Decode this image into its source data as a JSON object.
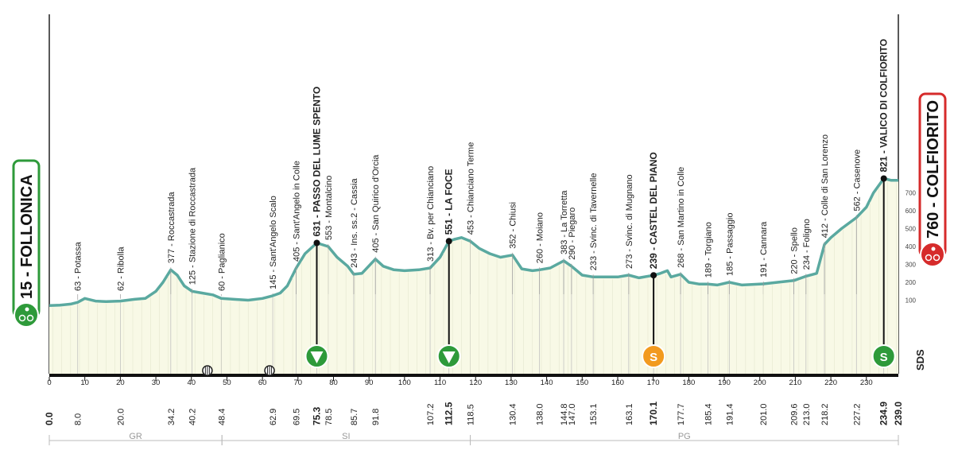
{
  "start": {
    "number": "15",
    "name": "FOLLONICA",
    "color": "#2e9a3a"
  },
  "finish": {
    "number": "760",
    "name": "COLFIORITO",
    "color": "#d62b2b"
  },
  "sds_label": "SDS",
  "regions": [
    "GR",
    "SI",
    "PG"
  ],
  "chart_data": {
    "type": "area",
    "xlabel": "",
    "ylabel": "",
    "xlim": [
      0,
      239
    ],
    "ylim": [
      0,
      800
    ],
    "x_ticks": [
      0,
      10,
      20,
      30,
      40,
      50,
      60,
      70,
      80,
      90,
      100,
      110,
      120,
      130,
      140,
      150,
      160,
      170,
      180,
      190,
      200,
      210,
      220,
      230
    ],
    "y_scale_ticks": [
      100,
      200,
      300,
      400,
      500,
      600,
      700
    ],
    "profile": {
      "x": [
        0,
        3,
        6,
        8,
        10,
        13,
        16,
        20,
        24,
        27,
        30,
        32,
        34.2,
        36,
        38,
        40.2,
        43,
        46,
        48.4,
        52,
        56,
        60,
        62.9,
        65,
        67,
        69.5,
        72,
        75.3,
        78.5,
        81,
        84,
        85.7,
        88,
        91.8,
        94,
        97,
        100,
        104,
        107.2,
        110,
        112.5,
        114,
        116,
        118.5,
        121,
        124,
        127,
        130.4,
        133,
        136,
        138,
        141,
        144.8,
        147,
        150,
        153.1,
        156,
        160,
        163.1,
        166,
        170.1,
        172,
        174,
        175,
        177.7,
        180,
        183,
        185.4,
        188,
        191.4,
        195,
        201,
        205,
        209.6,
        213,
        216,
        218.2,
        220,
        223,
        227.2,
        230,
        232,
        234.9,
        237,
        239
      ],
      "y": [
        70,
        72,
        78,
        88,
        110,
        95,
        92,
        95,
        105,
        110,
        150,
        200,
        270,
        240,
        180,
        150,
        140,
        130,
        110,
        105,
        100,
        110,
        125,
        140,
        180,
        280,
        360,
        420,
        400,
        340,
        290,
        245,
        250,
        330,
        290,
        270,
        265,
        270,
        280,
        340,
        430,
        440,
        450,
        430,
        390,
        360,
        340,
        352,
        275,
        265,
        270,
        280,
        320,
        290,
        240,
        230,
        230,
        230,
        240,
        225,
        239,
        250,
        265,
        230,
        245,
        200,
        190,
        190,
        185,
        200,
        185,
        191,
        200,
        210,
        234,
        250,
        412,
        450,
        500,
        562,
        620,
        700,
        780,
        770,
        770
      ]
    },
    "tick_labels": [
      {
        "km": "0.0",
        "bold": true
      },
      {
        "km": "8.0"
      },
      {
        "km": "20.0"
      },
      {
        "km": "34.2"
      },
      {
        "km": "40.2"
      },
      {
        "km": "48.4"
      },
      {
        "km": "62.9"
      },
      {
        "km": "69.5"
      },
      {
        "km": "75.3",
        "bold": true
      },
      {
        "km": "78.5"
      },
      {
        "km": "85.7"
      },
      {
        "km": "91.8"
      },
      {
        "km": "107.2"
      },
      {
        "km": "112.5",
        "bold": true
      },
      {
        "km": "118.5"
      },
      {
        "km": "130.4"
      },
      {
        "km": "138.0"
      },
      {
        "km": "144.8"
      },
      {
        "km": "147.0"
      },
      {
        "km": "153.1"
      },
      {
        "km": "163.1"
      },
      {
        "km": "170.1",
        "bold": true
      },
      {
        "km": "177.7"
      },
      {
        "km": "185.4"
      },
      {
        "km": "191.4"
      },
      {
        "km": "201.0"
      },
      {
        "km": "209.6"
      },
      {
        "km": "213.0"
      },
      {
        "km": "218.2"
      },
      {
        "km": "227.2"
      },
      {
        "km": "234.9",
        "bold": true
      },
      {
        "km": "239.0",
        "bold": true
      }
    ],
    "places": [
      {
        "km": 8.0,
        "text": "63 - Potassa"
      },
      {
        "km": 20.0,
        "text": "62 - Ribolla"
      },
      {
        "km": 34.2,
        "text": "377 - Roccastrada"
      },
      {
        "km": 40.2,
        "text": "125 - Stazione di Roccastrada"
      },
      {
        "km": 48.4,
        "text": "60 - Paglianico"
      },
      {
        "km": 62.9,
        "text": "145 - Sant'Angelo Scalo"
      },
      {
        "km": 69.5,
        "text": "405 - Sant'Angelo in Colle"
      },
      {
        "km": 75.3,
        "text": "631 - PASSO DEL LUME SPENTO",
        "bold": true
      },
      {
        "km": 78.5,
        "text": "553 - Montalcino"
      },
      {
        "km": 85.7,
        "text": "243 - Ins. ss.2 - Cassia"
      },
      {
        "km": 91.8,
        "text": "405 - San Quirico d'Orcia"
      },
      {
        "km": 107.2,
        "text": "313 - Bv. per Chianciano"
      },
      {
        "km": 112.5,
        "text": "551 - LA FOCE",
        "bold": true
      },
      {
        "km": 118.5,
        "text": "453 - Chianciano Terme"
      },
      {
        "km": 130.4,
        "text": "352 - Chiusi"
      },
      {
        "km": 138.0,
        "text": "260 - Moiano"
      },
      {
        "km": 144.8,
        "text": "383 - La Torretta"
      },
      {
        "km": 147.0,
        "text": "290 - Piegaro"
      },
      {
        "km": 153.1,
        "text": "233 - Svinc. di Tavernelle"
      },
      {
        "km": 163.1,
        "text": "273 - Svinc. di Mugnano"
      },
      {
        "km": 170.1,
        "text": "239 - CASTEL DEL PIANO",
        "bold": true
      },
      {
        "km": 177.7,
        "text": "268 - San Martino in Colle"
      },
      {
        "km": 185.4,
        "text": "189 - Torgiano"
      },
      {
        "km": 191.4,
        "text": "185 - Passaggio"
      },
      {
        "km": 201.0,
        "text": "191 - Cannara"
      },
      {
        "km": 209.6,
        "text": "220 - Spello"
      },
      {
        "km": 213.0,
        "text": "234 - Foligno"
      },
      {
        "km": 218.2,
        "text": "412 - Colle di San Lorenzo"
      },
      {
        "km": 227.2,
        "text": "562 - Casenove"
      },
      {
        "km": 234.9,
        "text": "821 - VALICO DI COLFIORITO",
        "bold": true
      }
    ],
    "markers": [
      {
        "km": 75.3,
        "type": "climb",
        "color": "#2e9a3a",
        "symbol": "▼",
        "label_text": ""
      },
      {
        "km": 112.5,
        "type": "climb",
        "color": "#2e9a3a",
        "symbol": "▼",
        "label_text": ""
      },
      {
        "km": 170.1,
        "type": "sprint",
        "color": "#f29a1f",
        "symbol": "S",
        "label_text": "S"
      },
      {
        "km": 234.9,
        "type": "sprint",
        "color": "#2e9a3a",
        "symbol": "S",
        "label_text": "S"
      }
    ],
    "rail_crossings_km": [
      44.5,
      62.0
    ]
  }
}
